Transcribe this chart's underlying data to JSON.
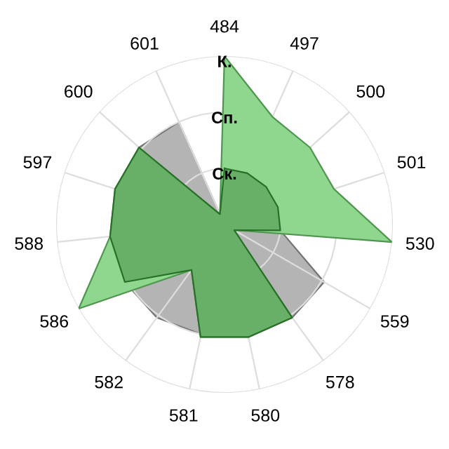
{
  "chart_data": {
    "type": "radar",
    "categories": [
      "484",
      "497",
      "500",
      "501",
      "530",
      "559",
      "578",
      "580",
      "581",
      "582",
      "586",
      "588",
      "597",
      "600",
      "601"
    ],
    "series": [
      {
        "color": "#b4b4b4",
        "values": [
          0,
          1,
          1,
          1,
          1,
          2.05,
          2.05,
          2,
          2,
          2.05,
          2.05,
          2,
          2,
          2.05,
          2
        ]
      },
      {
        "color": "#8fd68f",
        "values": [
          3,
          2.1,
          2.05,
          2.05,
          3,
          0.2,
          2.05,
          2.05,
          2.05,
          1,
          3,
          2.05,
          2.05,
          2.05,
          0.2
        ]
      },
      {
        "color": "#68b068",
        "values": [
          1,
          1,
          1,
          1,
          1,
          0.2,
          2.05,
          2.05,
          2.05,
          1,
          2.05,
          2.05,
          2.05,
          2.05,
          0.2
        ]
      }
    ],
    "ylim": [
      0,
      3
    ],
    "yticks": [
      {
        "value": 1,
        "label": "Ск."
      },
      {
        "value": 2,
        "label": "Сп."
      },
      {
        "value": 3,
        "label": "К."
      }
    ],
    "grid": true,
    "legend": false
  }
}
